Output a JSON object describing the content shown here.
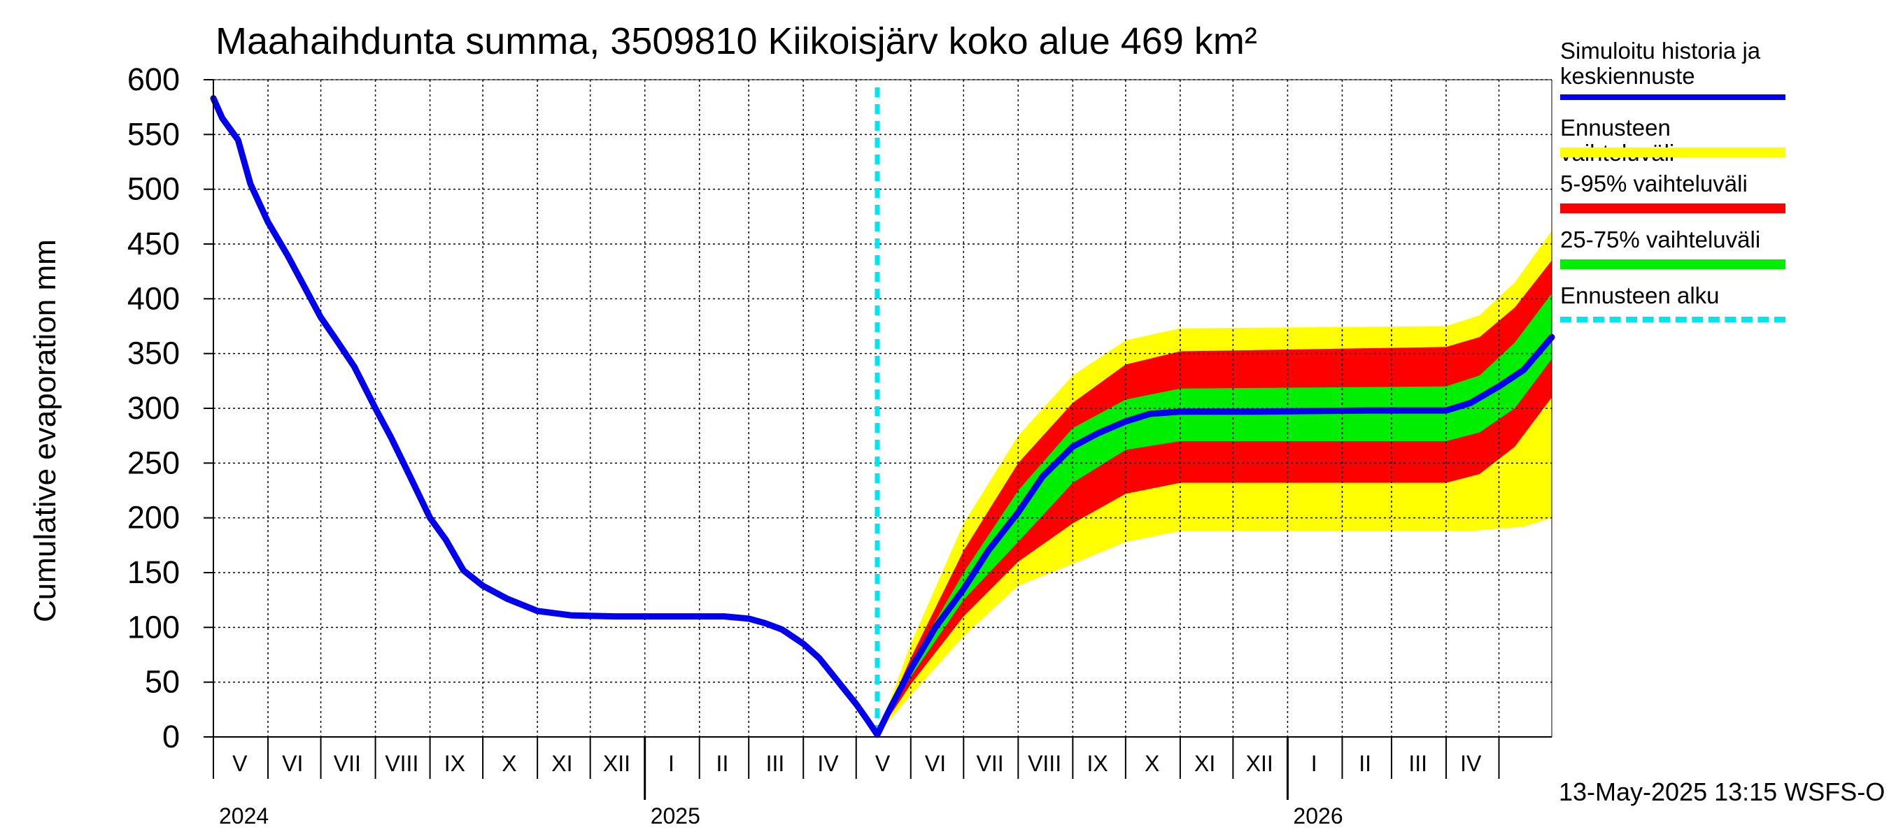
{
  "chart_data": {
    "type": "area",
    "title": "Maahaihdunta summa, 3509810 Kiikoisjärv koko alue 469 km²",
    "ylabel": "Cumulative evaporation   mm",
    "ylim": [
      0,
      600
    ],
    "yticks": [
      0,
      50,
      100,
      150,
      200,
      250,
      300,
      350,
      400,
      450,
      500,
      550,
      600
    ],
    "xlim": [
      "2024-05-01",
      "2026-05-31"
    ],
    "grid": true,
    "month_labels": [
      {
        "label": "V",
        "date": "2024-05-16"
      },
      {
        "label": "VI",
        "date": "2024-06-15"
      },
      {
        "label": "VII",
        "date": "2024-07-16"
      },
      {
        "label": "VIII",
        "date": "2024-08-16"
      },
      {
        "label": "IX",
        "date": "2024-09-15"
      },
      {
        "label": "X",
        "date": "2024-10-16"
      },
      {
        "label": "XI",
        "date": "2024-11-15"
      },
      {
        "label": "XII",
        "date": "2024-12-16"
      },
      {
        "label": "I",
        "date": "2025-01-16"
      },
      {
        "label": "II",
        "date": "2025-02-14"
      },
      {
        "label": "III",
        "date": "2025-03-16"
      },
      {
        "label": "IV",
        "date": "2025-04-15"
      },
      {
        "label": "V",
        "date": "2025-05-16"
      },
      {
        "label": "VI",
        "date": "2025-06-15"
      },
      {
        "label": "VII",
        "date": "2025-07-16"
      },
      {
        "label": "VIII",
        "date": "2025-08-16"
      },
      {
        "label": "IX",
        "date": "2025-09-15"
      },
      {
        "label": "X",
        "date": "2025-10-16"
      },
      {
        "label": "XI",
        "date": "2025-11-15"
      },
      {
        "label": "XII",
        "date": "2025-12-16"
      },
      {
        "label": "I",
        "date": "2026-01-16"
      },
      {
        "label": "II",
        "date": "2026-02-14"
      },
      {
        "label": "III",
        "date": "2026-03-16"
      },
      {
        "label": "IV",
        "date": "2026-04-15"
      }
    ],
    "year_labels": [
      {
        "label": "2024",
        "date": "2024-05-01"
      },
      {
        "label": "2025",
        "date": "2025-01-01"
      },
      {
        "label": "2026",
        "date": "2026-01-01"
      }
    ],
    "forecast_start": "2025-05-13",
    "legend_position": "right",
    "series": [
      {
        "name": "Simuloitu historia ja keskiennuste",
        "color": "#0000ee",
        "points": [
          [
            "2024-05-01",
            583
          ],
          [
            "2024-05-06",
            565
          ],
          [
            "2024-05-15",
            545
          ],
          [
            "2024-05-22",
            505
          ],
          [
            "2024-06-01",
            470
          ],
          [
            "2024-06-12",
            440
          ],
          [
            "2024-06-22",
            410
          ],
          [
            "2024-07-01",
            383
          ],
          [
            "2024-07-10",
            362
          ],
          [
            "2024-07-20",
            338
          ],
          [
            "2024-08-01",
            300
          ],
          [
            "2024-08-10",
            273
          ],
          [
            "2024-08-20",
            240
          ],
          [
            "2024-09-01",
            200
          ],
          [
            "2024-09-10",
            180
          ],
          [
            "2024-09-20",
            152
          ],
          [
            "2024-10-01",
            138
          ],
          [
            "2024-10-15",
            126
          ],
          [
            "2024-11-01",
            115
          ],
          [
            "2024-11-20",
            111
          ],
          [
            "2024-12-15",
            110
          ],
          [
            "2025-02-15",
            110
          ],
          [
            "2025-03-01",
            108
          ],
          [
            "2025-03-10",
            104
          ],
          [
            "2025-03-20",
            98
          ],
          [
            "2025-04-01",
            85
          ],
          [
            "2025-04-10",
            72
          ],
          [
            "2025-04-20",
            52
          ],
          [
            "2025-05-01",
            30
          ],
          [
            "2025-05-08",
            14
          ],
          [
            "2025-05-13",
            2
          ],
          [
            "2025-05-20",
            25
          ],
          [
            "2025-06-01",
            62
          ],
          [
            "2025-06-15",
            100
          ],
          [
            "2025-07-01",
            135
          ],
          [
            "2025-07-15",
            170
          ],
          [
            "2025-08-01",
            205
          ],
          [
            "2025-08-15",
            238
          ],
          [
            "2025-09-01",
            265
          ],
          [
            "2025-09-15",
            277
          ],
          [
            "2025-10-01",
            288
          ],
          [
            "2025-10-15",
            295
          ],
          [
            "2025-11-01",
            297
          ],
          [
            "2025-12-15",
            297
          ],
          [
            "2026-02-15",
            298
          ],
          [
            "2026-04-01",
            298
          ],
          [
            "2026-04-15",
            305
          ],
          [
            "2026-05-01",
            320
          ],
          [
            "2026-05-15",
            335
          ],
          [
            "2026-05-31",
            365
          ]
        ]
      },
      {
        "name": "Ennusteen vaihteluväli",
        "color": "#ffff00",
        "upper": [
          [
            "2025-05-13",
            2
          ],
          [
            "2025-06-01",
            85
          ],
          [
            "2025-07-01",
            195
          ],
          [
            "2025-08-01",
            275
          ],
          [
            "2025-09-01",
            330
          ],
          [
            "2025-10-01",
            362
          ],
          [
            "2025-11-01",
            373
          ],
          [
            "2026-04-01",
            375
          ],
          [
            "2026-04-20",
            385
          ],
          [
            "2026-05-10",
            415
          ],
          [
            "2026-05-31",
            462
          ]
        ],
        "lower": [
          [
            "2025-05-13",
            2
          ],
          [
            "2025-06-01",
            38
          ],
          [
            "2025-07-01",
            92
          ],
          [
            "2025-08-01",
            138
          ],
          [
            "2025-09-01",
            158
          ],
          [
            "2025-10-01",
            178
          ],
          [
            "2025-11-01",
            188
          ],
          [
            "2026-04-15",
            188
          ],
          [
            "2026-05-15",
            192
          ],
          [
            "2026-05-31",
            200
          ]
        ]
      },
      {
        "name": "5-95% vaihteluväli",
        "color": "#ff0000",
        "upper": [
          [
            "2025-05-13",
            2
          ],
          [
            "2025-06-01",
            72
          ],
          [
            "2025-07-01",
            170
          ],
          [
            "2025-08-01",
            250
          ],
          [
            "2025-09-01",
            305
          ],
          [
            "2025-10-01",
            340
          ],
          [
            "2025-11-01",
            352
          ],
          [
            "2026-04-01",
            356
          ],
          [
            "2026-04-20",
            365
          ],
          [
            "2026-05-10",
            392
          ],
          [
            "2026-05-31",
            435
          ]
        ],
        "lower": [
          [
            "2025-05-13",
            2
          ],
          [
            "2025-06-01",
            48
          ],
          [
            "2025-07-01",
            110
          ],
          [
            "2025-08-01",
            160
          ],
          [
            "2025-09-01",
            195
          ],
          [
            "2025-10-01",
            222
          ],
          [
            "2025-11-01",
            232
          ],
          [
            "2026-04-01",
            232
          ],
          [
            "2026-04-20",
            240
          ],
          [
            "2026-05-10",
            265
          ],
          [
            "2026-05-31",
            310
          ]
        ]
      },
      {
        "name": "25-75% vaihteluväli",
        "color": "#00ee00",
        "upper": [
          [
            "2025-05-13",
            2
          ],
          [
            "2025-06-01",
            67
          ],
          [
            "2025-07-01",
            150
          ],
          [
            "2025-08-01",
            225
          ],
          [
            "2025-09-01",
            282
          ],
          [
            "2025-10-01",
            308
          ],
          [
            "2025-11-01",
            318
          ],
          [
            "2026-04-01",
            320
          ],
          [
            "2026-04-20",
            330
          ],
          [
            "2026-05-10",
            360
          ],
          [
            "2026-05-31",
            405
          ]
        ],
        "lower": [
          [
            "2025-05-13",
            2
          ],
          [
            "2025-06-01",
            55
          ],
          [
            "2025-07-01",
            125
          ],
          [
            "2025-08-01",
            178
          ],
          [
            "2025-09-01",
            232
          ],
          [
            "2025-10-01",
            262
          ],
          [
            "2025-11-01",
            270
          ],
          [
            "2026-04-01",
            270
          ],
          [
            "2026-04-20",
            278
          ],
          [
            "2026-05-10",
            300
          ],
          [
            "2026-05-31",
            345
          ]
        ]
      },
      {
        "name": "Ennusteen alku",
        "color": "#00e5ee"
      }
    ]
  },
  "footer": "13-May-2025 13:15 WSFS-O"
}
